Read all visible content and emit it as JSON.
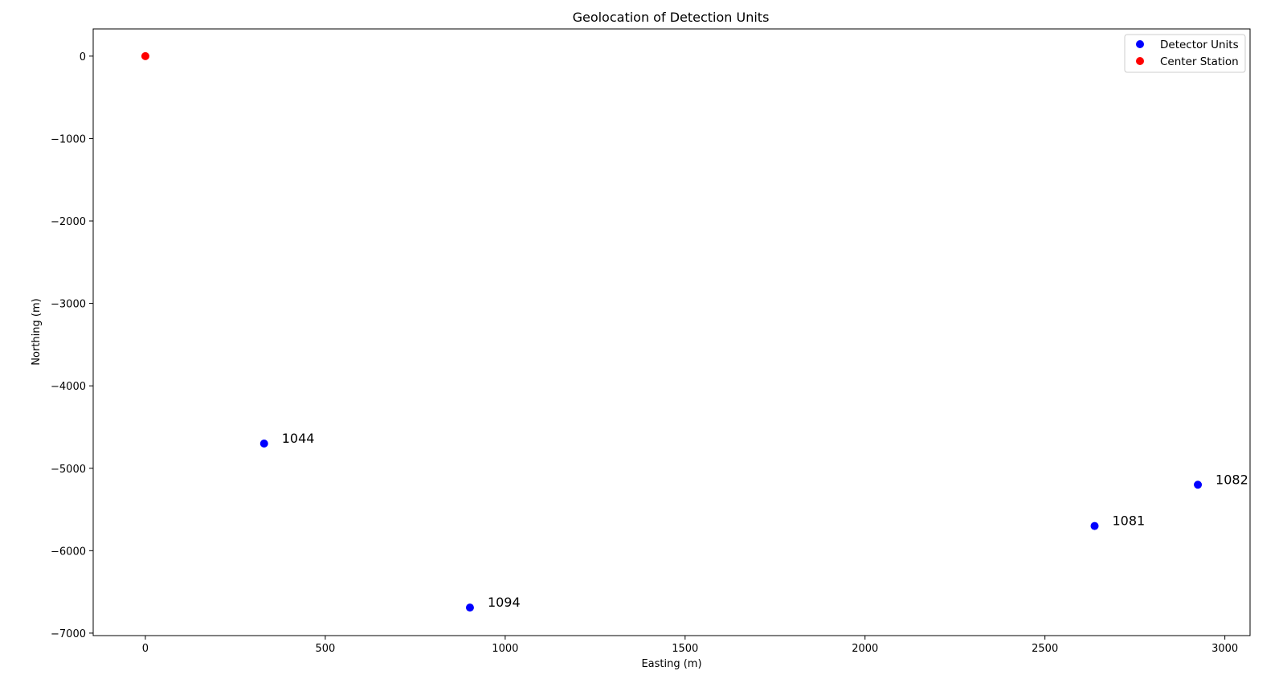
{
  "chart_data": {
    "type": "scatter",
    "title": "Geolocation of Detection Units",
    "xlabel": "Easting (m)",
    "ylabel": "Northing (m)",
    "xlim": [
      -145,
      3070
    ],
    "ylim": [
      -7030,
      330
    ],
    "xticks": [
      0,
      500,
      1000,
      1500,
      2000,
      2500,
      3000
    ],
    "yticks": [
      0,
      -1000,
      -2000,
      -3000,
      -4000,
      -5000,
      -6000,
      -7000
    ],
    "xtick_labels": [
      "0",
      "500",
      "1000",
      "1500",
      "2000",
      "2500",
      "3000"
    ],
    "ytick_labels": [
      "0",
      "−1000",
      "−2000",
      "−3000",
      "−4000",
      "−5000",
      "−6000",
      "−7000"
    ],
    "grid": false,
    "legend_position": "top-right",
    "series": [
      {
        "name": "Detector Units",
        "color": "#0000ff",
        "points": [
          {
            "x": 330,
            "y": -4700,
            "label": "1044"
          },
          {
            "x": 902,
            "y": -6690,
            "label": "1094"
          },
          {
            "x": 2638,
            "y": -5700,
            "label": "1081"
          },
          {
            "x": 2925,
            "y": -5200,
            "label": "1082"
          }
        ]
      },
      {
        "name": "Center Station",
        "color": "#ff0000",
        "points": [
          {
            "x": 0,
            "y": 0
          }
        ]
      }
    ]
  }
}
